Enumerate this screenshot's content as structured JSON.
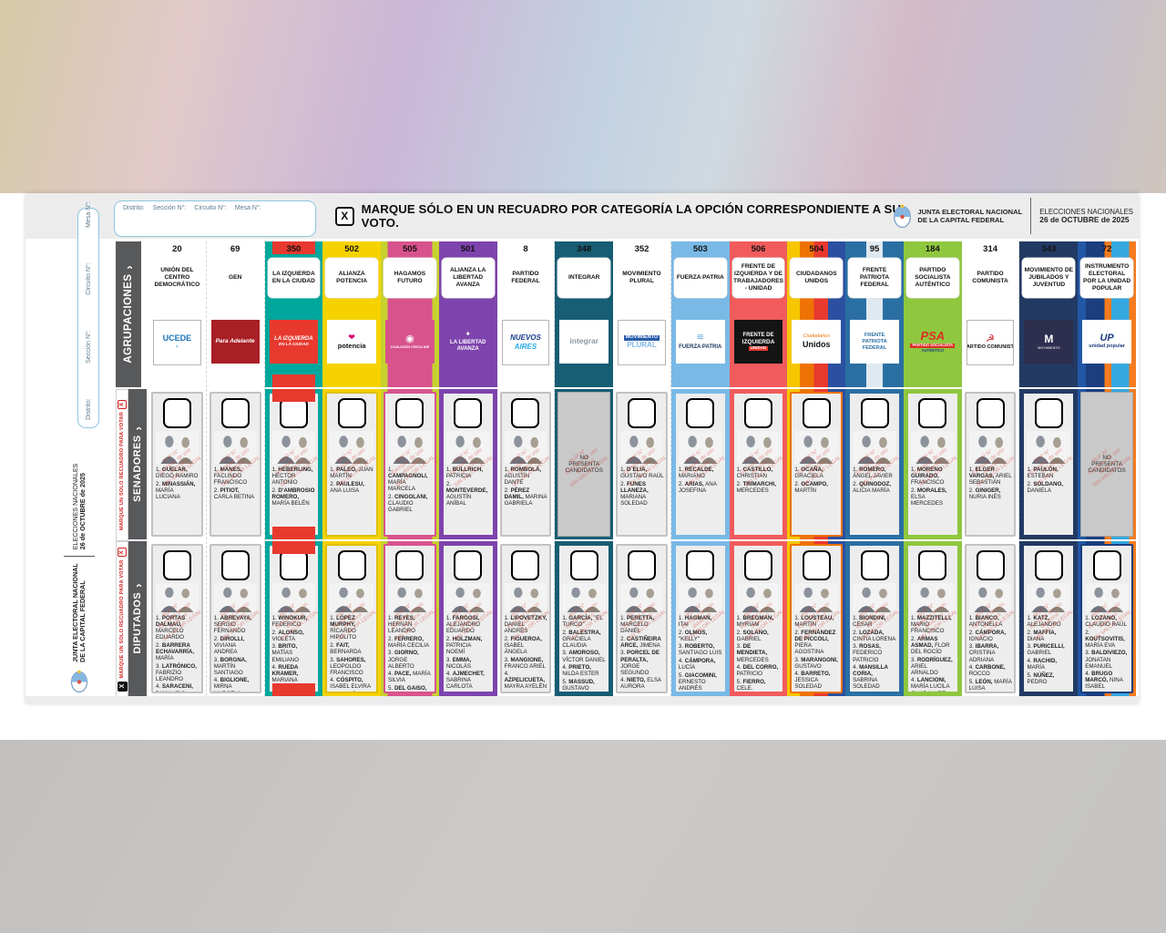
{
  "page": {
    "instruction": "MARQUE SÓLO EN UN RECUADRO POR CATEGORÍA LA OPCIÓN CORRESPONDIENTE A SU VOTO.",
    "marque_icon": "X",
    "chevron": "›",
    "org_line1": "JUNTA ELECTORAL NACIONAL",
    "org_line2": "DE LA CAPITAL FEDERAL",
    "election_line1": "ELECCIONES NACIONALES",
    "election_line2": "26 de OCTUBRE de 2025",
    "fields": [
      "Distrito:",
      "Sección N°:",
      "Circuito N°:",
      "Mesa N°:"
    ],
    "row_labels": {
      "agrupaciones": "AGRUPACIONES",
      "senadores": "SENADORES",
      "diputados": "DIPUTADOS"
    },
    "marque_strip": "MARQUE UN SOLO RECUADRO PARA VOTAR",
    "no_candidates": "NO PRESENTA CANDIDATOS",
    "watermark": "BUP N°\nEjemplar de uso didáctico\nSIN VALOR LEGAL"
  },
  "parties": [
    {
      "number": "20",
      "name": "UNIÓN DEL CENTRO DEMOCRÁTICO",
      "bg": "#ffffff",
      "white": true,
      "accent": "#c2c2c2",
      "logo": {
        "bg": "#ffffff",
        "border": true,
        "lines": [
          {
            "t": "UCEDE",
            "c": "#1b75bb",
            "s": 9,
            "b": 1
          },
          {
            "t": "▪",
            "c": "#29abe2",
            "s": 6
          }
        ]
      },
      "senators": [
        [
          "GUELAR",
          "DIEGO RAMIRO"
        ],
        [
          "MINASSIÁN",
          "MARÍA LUCIANA"
        ]
      ],
      "deputies": [
        [
          "PORTAS DALMAU",
          "MARCELO EDUARDO"
        ],
        [
          "BARRERA ECHAVARRÍA",
          "MARÍA"
        ],
        [
          "LATRÓNICO",
          "FABRIZIO LEANDRO"
        ],
        [
          "SARACENI",
          "DIANA IRIS"
        ],
        [
          "RAMELLA",
          "MARIANO"
        ]
      ]
    },
    {
      "number": "69",
      "name": "GEN",
      "bg": "#ffffff",
      "white": true,
      "accent": "#c2c2c2",
      "logo": {
        "bg": "#a82025",
        "lines": [
          {
            "t": "Para Adelante",
            "c": "#ffffff",
            "s": 6.5,
            "b": 1,
            "i": 1
          }
        ]
      },
      "senators": [
        [
          "MANES",
          "FACUNDO FRANCISCO"
        ],
        [
          "PITIOT",
          "CARLA BETINA"
        ]
      ],
      "deputies": [
        [
          "ABREVAYA",
          "SERGIO FERNANDO"
        ],
        [
          "DIROLLI",
          "VIVIANA ANDREA"
        ],
        [
          "BORGNA",
          "MARTÍN SANTIAGO"
        ],
        [
          "BIGLIONE",
          "MIRNA MARCELA"
        ],
        [
          "GRIL",
          "FERNANDO"
        ]
      ]
    },
    {
      "number": "350",
      "name": "LA IZQUIERDA EN LA CIUDAD",
      "bg": "#00a79c",
      "accent": "#00a79c",
      "band": "#e8392f",
      "boxed": true,
      "logo": {
        "bg": "#e8392f",
        "lines": [
          {
            "t": "LA IZQUIERDA",
            "c": "#ffffff",
            "s": 6,
            "b": 1,
            "i": 1
          },
          {
            "t": "EN LA CIUDAD",
            "c": "#ffffff",
            "s": 4.6,
            "b": 1,
            "i": 1
          }
        ]
      },
      "senators": [
        [
          "HEBERLING",
          "HÉCTOR ANTONIO"
        ],
        [
          "D'AMBROSIO ROMERO",
          "MARÍA BELÉN"
        ]
      ],
      "deputies": [
        [
          "WINOKUR",
          "FEDERICO"
        ],
        [
          "ALONSO",
          "VIOLETA"
        ],
        [
          "BRITO",
          "MATÍAS EMILIANO"
        ],
        [
          "RUEDA KRAMER",
          "MARIANA"
        ],
        [
          "LEIVA",
          "ENRIQUE ALEJANDRO"
        ]
      ]
    },
    {
      "number": "502",
      "name": "ALIANZA POTENCIA",
      "bg": "#f6d300",
      "accent": "#dfbf00",
      "boxed": true,
      "logo": {
        "bg": "#ffffff",
        "lines": [
          {
            "t": "❤",
            "c": "#d6006e",
            "s": 9
          },
          {
            "t": "potencia",
            "c": "#111111",
            "s": 7.5,
            "b": 1
          }
        ]
      },
      "senators": [
        [
          "PALEO",
          "JUAN MARTÍN"
        ],
        [
          "PAULESU",
          "ANA LUISA"
        ]
      ],
      "deputies": [
        [
          "LÓPEZ MURPHY",
          "RICARDO HIPÓLITO"
        ],
        [
          "FAIT",
          "BERNARDA"
        ],
        [
          "SAHORES",
          "LEOPOLDO FRANCISCO"
        ],
        [
          "CÓSPITO",
          "ISABEL ELVIRA"
        ],
        [
          "RODRÍGUEZ",
          "CARLOS ALFREDO"
        ]
      ]
    },
    {
      "number": "505",
      "name": "HAGAMOS FUTURO",
      "bg": "linear-gradient(90deg,#c6d22e 0 12%,#d8538c 12% 88%,#c6d22e 88% 100%)",
      "accent": "#d8538c",
      "boxed": true,
      "logo": {
        "bg": "#d8538c",
        "lines": [
          {
            "t": "◉",
            "c": "#ffffff",
            "s": 11
          },
          {
            "t": "COALICIÓN CÍVICA ARI",
            "c": "#ffffff",
            "s": 3.8,
            "b": 1
          }
        ]
      },
      "senators": [
        [
          "CAMPAGNOLI",
          "MARÍA MARCELA"
        ],
        [
          "CINGOLANI",
          "CLAUDIO GABRIEL"
        ]
      ],
      "deputies": [
        [
          "REYES",
          "HERNÁN LEANDRO"
        ],
        [
          "FERRERO",
          "MARÍA CECILIA"
        ],
        [
          "GIORNO",
          "JORGE ALBERTO"
        ],
        [
          "PACE",
          "MARÍA SILVIA"
        ],
        [
          "DEL GAISO",
          "JUAN FACUNDO"
        ]
      ]
    },
    {
      "number": "501",
      "name": "ALIANZA LA LIBERTAD AVANZA",
      "bg": "#7d44ad",
      "accent": "#7d44ad",
      "boxed": true,
      "logo": {
        "bg": "#7d44ad",
        "lines": [
          {
            "t": "✦",
            "c": "#ffffff",
            "s": 8
          },
          {
            "t": "LA LIBERTAD",
            "c": "#ffffff",
            "s": 6,
            "b": 1
          },
          {
            "t": "AVANZA",
            "c": "#ffffff",
            "s": 6,
            "b": 1
          }
        ]
      },
      "senators": [
        [
          "BULLRICH",
          "PATRICIA"
        ],
        [
          "MONTEVERDE",
          "AGUSTÍN ANÍBAL"
        ]
      ],
      "deputies": [
        [
          "FARGOSI",
          "ALEJANDRO EDUARDO"
        ],
        [
          "HOLZMAN",
          "PATRICIA NOEMÍ"
        ],
        [
          "EMMA",
          "NICOLÁS"
        ],
        [
          "AJMECHET",
          "SABRINA CARLOTA"
        ],
        [
          "DE ANDREIS",
          "FERNANDO"
        ]
      ]
    },
    {
      "number": "8",
      "name": "PARTIDO FEDERAL",
      "bg": "#ffffff",
      "white": true,
      "accent": "#c2c2c2",
      "logo": {
        "bg": "#ffffff",
        "border": true,
        "lines": [
          {
            "t": "NUEVOS",
            "c": "#1b3f8f",
            "s": 8,
            "b": 1,
            "i": 1
          },
          {
            "t": "AIRES",
            "c": "#29abe2",
            "s": 8,
            "b": 1,
            "i": 1
          }
        ]
      },
      "senators": [
        [
          "ROMBOLÁ",
          "AGUSTÍN DANTE"
        ],
        [
          "PÉREZ DAMIL",
          "MARINA GABRIELA"
        ]
      ],
      "deputies": [
        [
          "LIPOVETZKY",
          "DANIEL ANDRÉS"
        ],
        [
          "FIGUEROA",
          "ISABEL ÁNGELA"
        ],
        [
          "MANGIONE",
          "FRANCO ARIEL"
        ],
        [
          "AZPELICUETA",
          "MAYRA AYELÉN"
        ],
        [
          "HOERTH ALCONADA",
          "TOMÁS"
        ]
      ]
    },
    {
      "number": "348",
      "name": "INTEGRAR",
      "bg": "#175d73",
      "accent": "#175d73",
      "boxed": true,
      "logo": {
        "bg": "#ffffff",
        "lines": [
          {
            "t": "integrar",
            "c": "#8a98a6",
            "s": 8.5,
            "b": 1
          }
        ]
      },
      "senators": null,
      "deputies": [
        [
          "GARCÍA",
          "\"EL TURCO\""
        ],
        [
          "BALESTRA",
          "GRACIELA CLAUDIA"
        ],
        [
          "AMOROSO",
          "VÍCTOR DANIEL"
        ],
        [
          "PRIETO",
          "NILDA ESTER"
        ],
        [
          "MASSUD",
          "GUSTAVO OSMAN"
        ]
      ]
    },
    {
      "number": "352",
      "name": "MOVIMIENTO PLURAL",
      "bg": "#ffffff",
      "white": true,
      "accent": "#c2c2c2",
      "logo": {
        "bg": "#ffffff",
        "border": true,
        "lines": [
          {
            "t": "MOVIMIENTO",
            "c": "#ffffff",
            "s": 5.5,
            "b": 1,
            "bg": "#2a5caa"
          },
          {
            "t": "PLURAL",
            "c": "#7db8e8",
            "s": 8,
            "b": 1
          }
        ]
      },
      "senators": [
        [
          "D´ELIA",
          "GUSTAVO RAÚL"
        ],
        [
          "FUNES LLANEZA",
          "MARIANA SOLEDAD"
        ]
      ],
      "deputies": [
        [
          "PERETTA",
          "MARCELO DANIEL"
        ],
        [
          "CASTIÑEIRA ARCE",
          "JIMENA"
        ],
        [
          "PORCEL DE PERALTA",
          "JORGE SEGUNDO"
        ],
        [
          "NIETO",
          "ELSA AURORA"
        ],
        [
          "FERRI",
          "JORGE"
        ]
      ]
    },
    {
      "number": "503",
      "name": "FUERZA PATRIA",
      "bg": "#79b9e6",
      "accent": "#79b9e6",
      "boxed": true,
      "logo": {
        "bg": "#ffffff",
        "lines": [
          {
            "t": "≋",
            "c": "#5aa6dc",
            "s": 10
          },
          {
            "t": "FUERZA PATRIA",
            "c": "#17335e",
            "s": 6,
            "b": 1
          }
        ]
      },
      "senators": [
        [
          "RECALDE",
          "MARIANO"
        ],
        [
          "ARIAS",
          "ANA JOSEFINA"
        ]
      ],
      "deputies": [
        [
          "HAGMAN",
          "ITAI"
        ],
        [
          "OLMOS",
          "\"KELLY\""
        ],
        [
          "ROBERTO",
          "SANTIAGO LUIS"
        ],
        [
          "CÁMPORA",
          "LUCÍA"
        ],
        [
          "GIACOMINI",
          "ERNESTO ANDRÉS"
        ]
      ]
    },
    {
      "number": "506",
      "name": "FRENTE DE IZQUIERDA Y DE TRABAJADORES - UNIDAD",
      "bg": "#f15b5c",
      "accent": "#f15b5c",
      "boxed": true,
      "logo": {
        "bg": "#141414",
        "lines": [
          {
            "t": "FRENTE DE",
            "c": "#ffffff",
            "s": 6,
            "b": 1
          },
          {
            "t": "IZQUIERDA",
            "c": "#ffffff",
            "s": 6.5,
            "b": 1
          },
          {
            "t": "UNIDAD",
            "c": "#ffffff",
            "s": 4.5,
            "b": 1,
            "bg": "#e8392f"
          }
        ]
      },
      "senators": [
        [
          "CASTILLO",
          "CHRISTIAN"
        ],
        [
          "TRIMARCHI",
          "MERCEDES"
        ]
      ],
      "deputies": [
        [
          "BREGMAN",
          "MYRIAM"
        ],
        [
          "SOLANO",
          "GABRIEL"
        ],
        [
          "DE MENDIETA",
          "MERCEDES"
        ],
        [
          "DEL CORRO",
          "PATRICIO"
        ],
        [
          "FIERRO",
          "CELE."
        ]
      ]
    },
    {
      "number": "504",
      "name": "CIUDADANOS UNIDOS",
      "bg": "linear-gradient(90deg,#f6c700 0 22%,#ee7203 22% 46%,#e8392f 46% 70%,#2b50a1 70% 100%)",
      "accent": "#ee7203",
      "boxed": true,
      "logo": {
        "bg": "#ffffff",
        "lines": [
          {
            "t": "Ciudadanos",
            "c": "#ee7203",
            "s": 5.5,
            "i": 1
          },
          {
            "t": "Unidos",
            "c": "#111111",
            "s": 9,
            "b": 1
          }
        ]
      },
      "senators": [
        [
          "OCAÑA",
          "GRACIELA"
        ],
        [
          "OCAMPO",
          "MARTÍN"
        ]
      ],
      "deputies": [
        [
          "LOUSTEAU",
          "MARTÍN"
        ],
        [
          "FERNÁNDEZ DE PICCOLI",
          "PIERA AGOSTINA"
        ],
        [
          "MARANGONI",
          "GUSTAVO"
        ],
        [
          "BARRETO",
          "JESSICA SOLEDAD"
        ],
        [
          "CORTINA",
          "ROY"
        ]
      ]
    },
    {
      "number": "95",
      "name": "FRENTE PATRIOTA FEDERAL",
      "bg": "#2a6fa3",
      "accent": "#2a6fa3",
      "cross": true,
      "boxed": true,
      "logo": {
        "bg": "#ffffff",
        "lines": [
          {
            "t": "FRENTE",
            "c": "#2a6fa3",
            "s": 5.6,
            "b": 1
          },
          {
            "t": "PATRIOTA",
            "c": "#2a6fa3",
            "s": 5.6,
            "b": 1
          },
          {
            "t": "FEDERAL",
            "c": "#2a6fa3",
            "s": 5.6,
            "b": 1
          }
        ]
      },
      "senators": [
        [
          "ROMERO",
          "ÁNGEL JAVIER"
        ],
        [
          "QUINODOZ",
          "ALICIA MARÍA"
        ]
      ],
      "deputies": [
        [
          "BIONDINI",
          "CÉSAR"
        ],
        [
          "LOZADA",
          "CINTIA LORENA"
        ],
        [
          "ROSAS",
          "FEDERICO PATRICIO"
        ],
        [
          "MANSILLA CORIA",
          "SABRINA SOLEDAD"
        ],
        [
          "ZELENEÑKI",
          "DANIEL ALEJANDRO"
        ]
      ]
    },
    {
      "number": "184",
      "name": "PARTIDO SOCIALISTA AUTÉNTICO",
      "bg": "#8fc73e",
      "accent": "#8fc73e",
      "boxed": true,
      "logo": {
        "lines": [
          {
            "t": "PSA",
            "c": "#d93025",
            "s": 13,
            "b": 1,
            "i": 1
          },
          {
            "t": "PARTIDO SOCIALISTA",
            "c": "#ffffff",
            "s": 4.2,
            "b": 1,
            "bg": "#d93025"
          },
          {
            "t": "AUTÉNTICO",
            "c": "#1b3e7f",
            "s": 4.2,
            "b": 1
          }
        ]
      },
      "senators": [
        [
          "MORENO GUIRADO",
          "FRANCISCO"
        ],
        [
          "MORALES",
          "ELSA MERCEDES"
        ]
      ],
      "deputies": [
        [
          "MAZZITELLI",
          "MARIO FRANCISCO"
        ],
        [
          "ARMAS ASMAD",
          "FLOR DEL ROCÍO"
        ],
        [
          "RODRÍGUEZ",
          "ARIEL ARNALDO"
        ],
        [
          "LANCIONI",
          "MARÍA LUCILA GUADALUPE"
        ],
        [
          "MUSCATELLO",
          "FACUNDO TOMÁS"
        ]
      ]
    },
    {
      "number": "314",
      "name": "PARTIDO COMUNISTA",
      "bg": "#ffffff",
      "white": true,
      "accent": "#c2c2c2",
      "logo": {
        "bg": "#ffffff",
        "border": true,
        "lines": [
          {
            "t": "☭",
            "c": "#cc2027",
            "s": 11
          },
          {
            "t": "PARTIDO COMUNISTA",
            "c": "#111111",
            "s": 5.5,
            "b": 1
          }
        ]
      },
      "senators": [
        [
          "ELGER VARGAS",
          "ARIEL SEBASTIÁN"
        ],
        [
          "GINIGER",
          "NURIA INÉS"
        ]
      ],
      "deputies": [
        [
          "BIANCO",
          "ANTONELLA"
        ],
        [
          "CÁMPORA",
          "IGNACIO"
        ],
        [
          "IBARRA",
          "CRISTINA ADRIANA"
        ],
        [
          "CARBONE",
          "ROCCO"
        ],
        [
          "LEÓN",
          "MARÍA LUISA"
        ]
      ]
    },
    {
      "number": "343",
      "name": "MOVIMIENTO DE JUBILADOS Y JUVENTUD",
      "bg": "#223a63",
      "accent": "#223a63",
      "boxed": true,
      "logo": {
        "bg": "#2e2e4e",
        "lines": [
          {
            "t": "M",
            "c": "#ffffff",
            "s": 12,
            "b": 1
          },
          {
            "t": "MOVIMIENTO",
            "c": "#ffffff",
            "s": 3.8
          }
        ]
      },
      "senators": [
        [
          "PAULÓN",
          "ESTEBAN"
        ],
        [
          "SOLDANO",
          "DANIELA"
        ]
      ],
      "deputies": [
        [
          "KATZ",
          "ALEJANDRO"
        ],
        [
          "MAFFIA",
          "DIANA"
        ],
        [
          "PURICELLI",
          "GABRIEL"
        ],
        [
          "RACHID",
          "MARÍA"
        ],
        [
          "NÚÑEZ",
          "PEDRO"
        ]
      ]
    },
    {
      "number": "72",
      "name": "INSTRUMENTO ELECTORAL POR LA UNIDAD POPULAR",
      "bg": "linear-gradient(90deg,#2257a5 0 14%,#1b3e7f 14% 46%,#f47b20 46% 58%,#35a8e0 58% 88%,#f47b20 88% 100%)",
      "accent": "#1b3e7f",
      "boxed": true,
      "logo": {
        "bg": "#ffffff",
        "lines": [
          {
            "t": "UP",
            "c": "#1b3e7f",
            "s": 11,
            "b": 1,
            "i": 1
          },
          {
            "t": "unidad popular",
            "c": "#1b3e7f",
            "s": 5.5,
            "b": 1
          }
        ]
      },
      "senators": null,
      "deputies": [
        [
          "LOZANO",
          "CLAUDIO RAÚL"
        ],
        [
          "KOUTSOVITIS",
          "MARÍA EVA"
        ],
        [
          "BALDIVIEZO",
          "JONATAN EMANUEL"
        ],
        [
          "BRUGO MARCÓ",
          "NINA ISABEL"
        ],
        [
          "BERGEL",
          "PABLO"
        ]
      ]
    }
  ]
}
